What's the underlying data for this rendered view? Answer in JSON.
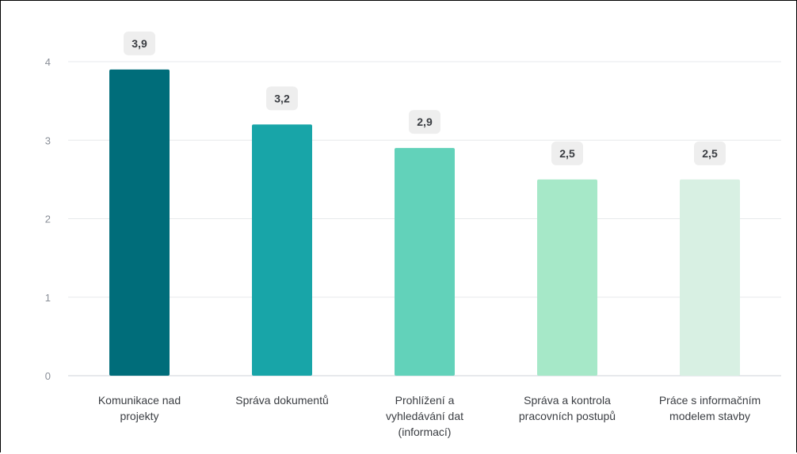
{
  "chart_data": {
    "type": "bar",
    "categories": [
      [
        "Komunikace nad",
        "projekty"
      ],
      [
        "Správa dokumentů"
      ],
      [
        "Prohlížení a",
        "vyhledávání dat",
        "(informací)"
      ],
      [
        "Správa a kontrola",
        "pracovních postupů"
      ],
      [
        "Práce s informačním",
        "modelem stavby"
      ]
    ],
    "values": [
      3.9,
      3.2,
      2.9,
      2.5,
      2.5
    ],
    "data_labels": [
      "3,9",
      "3,2",
      "2,9",
      "2,5",
      "2,5"
    ],
    "bar_colors": [
      "#006d7a",
      "#18a5a8",
      "#62d2ba",
      "#a6e8c8",
      "#d8f0e3"
    ],
    "y_ticks": [
      0,
      1,
      2,
      3,
      4
    ],
    "ylim": [
      0,
      4
    ],
    "grid": true,
    "title": "",
    "xlabel": "",
    "ylabel": ""
  }
}
